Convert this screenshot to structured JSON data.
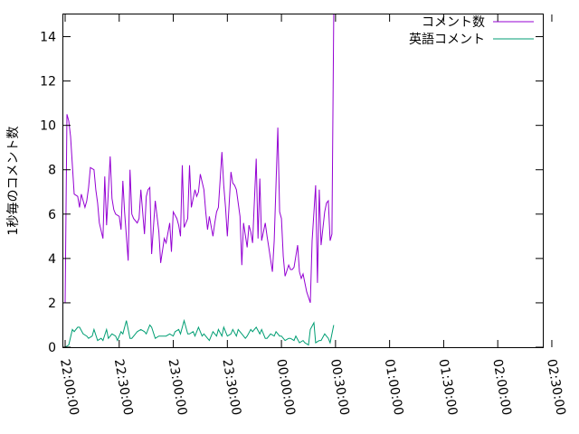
{
  "chart_data": {
    "type": "line",
    "title": "",
    "xlabel": "",
    "ylabel": "1秒毎のコメント数",
    "xlim": [
      "21:59:00",
      "02:25:00"
    ],
    "ylim": [
      0,
      15
    ],
    "xticks": [
      "22:00:00",
      "22:30:00",
      "23:00:00",
      "23:30:00",
      "00:00:00",
      "00:30:00",
      "01:00:00",
      "01:30:00",
      "02:00:00",
      "02:30:00"
    ],
    "yticks": [
      "0",
      "2",
      "4",
      "6",
      "8",
      "10",
      "12",
      "14"
    ],
    "grid": false,
    "legend_position": "top-right",
    "series": [
      {
        "name": "コメント数",
        "color": "#9400d3",
        "points": [
          [
            "22:00:00",
            2.0
          ],
          [
            "22:01:00",
            10.5
          ],
          [
            "22:02:00",
            10.2
          ],
          [
            "22:03:00",
            9.5
          ],
          [
            "22:04:00",
            8.2
          ],
          [
            "22:05:00",
            6.9
          ],
          [
            "22:07:00",
            6.8
          ],
          [
            "22:08:00",
            6.3
          ],
          [
            "22:09:00",
            6.9
          ],
          [
            "22:11:00",
            6.3
          ],
          [
            "22:12:00",
            6.6
          ],
          [
            "22:13:00",
            7.2
          ],
          [
            "22:14:00",
            8.1
          ],
          [
            "22:16:00",
            8.0
          ],
          [
            "22:17:00",
            7.1
          ],
          [
            "22:18:00",
            6.5
          ],
          [
            "22:19:00",
            5.6
          ],
          [
            "22:21:00",
            4.9
          ],
          [
            "22:22:00",
            7.7
          ],
          [
            "22:23:00",
            5.5
          ],
          [
            "22:25:00",
            8.6
          ],
          [
            "22:26:00",
            6.7
          ],
          [
            "22:27:00",
            6.2
          ],
          [
            "22:28:00",
            6.0
          ],
          [
            "22:30:00",
            5.9
          ],
          [
            "22:31:00",
            5.3
          ],
          [
            "22:32:00",
            7.5
          ],
          [
            "22:33:00",
            6.1
          ],
          [
            "22:35:00",
            3.9
          ],
          [
            "22:36:00",
            8.0
          ],
          [
            "22:37:00",
            6.0
          ],
          [
            "22:38:00",
            5.8
          ],
          [
            "22:40:00",
            5.6
          ],
          [
            "22:41:00",
            5.8
          ],
          [
            "22:42:00",
            7.1
          ],
          [
            "22:44:00",
            5.1
          ],
          [
            "22:45:00",
            6.8
          ],
          [
            "22:46:00",
            7.1
          ],
          [
            "22:47:00",
            7.2
          ],
          [
            "22:48:00",
            4.2
          ],
          [
            "22:50:00",
            6.6
          ],
          [
            "22:51:00",
            5.9
          ],
          [
            "22:52:00",
            5.2
          ],
          [
            "22:53:00",
            3.8
          ],
          [
            "22:55:00",
            4.9
          ],
          [
            "22:56:00",
            4.7
          ],
          [
            "22:58:00",
            5.6
          ],
          [
            "22:59:00",
            4.3
          ],
          [
            "23:00:00",
            6.1
          ],
          [
            "23:02:00",
            5.8
          ],
          [
            "23:03:00",
            5.5
          ],
          [
            "23:04:00",
            5.0
          ],
          [
            "23:05:00",
            8.2
          ],
          [
            "23:06:00",
            5.4
          ],
          [
            "23:08:00",
            5.8
          ],
          [
            "23:09:00",
            8.2
          ],
          [
            "23:10:00",
            6.3
          ],
          [
            "23:12:00",
            7.1
          ],
          [
            "23:13:00",
            6.8
          ],
          [
            "23:14:00",
            7.0
          ],
          [
            "23:15:00",
            7.8
          ],
          [
            "23:17:00",
            7.1
          ],
          [
            "23:18:00",
            6.1
          ],
          [
            "23:19:00",
            5.3
          ],
          [
            "23:20:00",
            5.9
          ],
          [
            "23:22:00",
            5.0
          ],
          [
            "23:23:00",
            5.6
          ],
          [
            "23:24:00",
            6.1
          ],
          [
            "23:25:00",
            6.3
          ],
          [
            "23:27:00",
            8.8
          ],
          [
            "23:28:00",
            7.3
          ],
          [
            "23:29:00",
            6.3
          ],
          [
            "23:30:00",
            5.0
          ],
          [
            "23:32:00",
            7.9
          ],
          [
            "23:33:00",
            7.4
          ],
          [
            "23:34:00",
            7.3
          ],
          [
            "23:35:00",
            7.1
          ],
          [
            "23:37:00",
            5.9
          ],
          [
            "23:38:00",
            3.7
          ],
          [
            "23:39:00",
            5.6
          ],
          [
            "23:41:00",
            4.5
          ],
          [
            "23:42:00",
            5.5
          ],
          [
            "23:43:00",
            5.2
          ],
          [
            "23:44:00",
            4.7
          ],
          [
            "23:46:00",
            8.5
          ],
          [
            "23:47:00",
            4.9
          ],
          [
            "23:48:00",
            7.6
          ],
          [
            "23:49:00",
            4.8
          ],
          [
            "23:51:00",
            5.6
          ],
          [
            "23:52:00",
            5.0
          ],
          [
            "23:53:00",
            4.5
          ],
          [
            "23:55:00",
            3.4
          ],
          [
            "23:56:00",
            4.8
          ],
          [
            "23:58:00",
            9.9
          ],
          [
            "23:59:00",
            6.1
          ],
          [
            "00:00:00",
            5.8
          ],
          [
            "00:01:00",
            4.1
          ],
          [
            "00:02:00",
            3.2
          ],
          [
            "00:04:00",
            3.7
          ],
          [
            "00:05:00",
            3.5
          ],
          [
            "00:06:00",
            3.5
          ],
          [
            "00:07:00",
            3.6
          ],
          [
            "00:09:00",
            4.6
          ],
          [
            "00:10:00",
            3.4
          ],
          [
            "00:11:00",
            3.1
          ],
          [
            "00:12:00",
            3.3
          ],
          [
            "00:14:00",
            2.5
          ],
          [
            "00:16:00",
            2.0
          ],
          [
            "00:17:00",
            4.8
          ],
          [
            "00:19:00",
            7.3
          ],
          [
            "00:20:00",
            2.9
          ],
          [
            "00:21:00",
            7.1
          ],
          [
            "00:22:00",
            4.6
          ],
          [
            "00:24:00",
            6.1
          ],
          [
            "00:25:00",
            6.5
          ],
          [
            "00:26:00",
            6.6
          ],
          [
            "00:27:00",
            4.8
          ],
          [
            "00:28:00",
            5.1
          ],
          [
            "00:29:00",
            15.0
          ]
        ]
      },
      {
        "name": "英語コメント",
        "color": "#009e73",
        "points": [
          [
            "22:00:00",
            0.0
          ],
          [
            "22:02:00",
            0.1
          ],
          [
            "22:04:00",
            0.8
          ],
          [
            "22:05:00",
            0.7
          ],
          [
            "22:07:00",
            0.9
          ],
          [
            "22:08:00",
            0.9
          ],
          [
            "22:10:00",
            0.6
          ],
          [
            "22:12:00",
            0.5
          ],
          [
            "22:13:00",
            0.4
          ],
          [
            "22:15:00",
            0.5
          ],
          [
            "22:16:00",
            0.8
          ],
          [
            "22:18:00",
            0.3
          ],
          [
            "22:20:00",
            0.4
          ],
          [
            "22:21:00",
            0.3
          ],
          [
            "22:23:00",
            0.8
          ],
          [
            "22:24:00",
            0.4
          ],
          [
            "22:26:00",
            0.6
          ],
          [
            "22:28:00",
            0.5
          ],
          [
            "22:29:00",
            0.3
          ],
          [
            "22:31:00",
            0.7
          ],
          [
            "22:32:00",
            0.6
          ],
          [
            "22:34:00",
            1.2
          ],
          [
            "22:36:00",
            0.4
          ],
          [
            "22:37:00",
            0.4
          ],
          [
            "22:39:00",
            0.6
          ],
          [
            "22:40:00",
            0.7
          ],
          [
            "22:42:00",
            0.8
          ],
          [
            "22:44:00",
            0.7
          ],
          [
            "22:45:00",
            0.6
          ],
          [
            "22:47:00",
            1.0
          ],
          [
            "22:48:00",
            0.9
          ],
          [
            "22:50:00",
            0.4
          ],
          [
            "22:52:00",
            0.5
          ],
          [
            "22:53:00",
            0.5
          ],
          [
            "22:55:00",
            0.5
          ],
          [
            "22:56:00",
            0.5
          ],
          [
            "22:58:00",
            0.6
          ],
          [
            "23:00:00",
            0.5
          ],
          [
            "23:01:00",
            0.7
          ],
          [
            "23:03:00",
            0.8
          ],
          [
            "23:04:00",
            0.6
          ],
          [
            "23:06:00",
            1.2
          ],
          [
            "23:08:00",
            0.6
          ],
          [
            "23:09:00",
            0.6
          ],
          [
            "23:11:00",
            0.7
          ],
          [
            "23:12:00",
            0.5
          ],
          [
            "23:14:00",
            0.9
          ],
          [
            "23:16:00",
            0.5
          ],
          [
            "23:17:00",
            0.6
          ],
          [
            "23:19:00",
            0.4
          ],
          [
            "23:20:00",
            0.3
          ],
          [
            "23:22:00",
            0.7
          ],
          [
            "23:24:00",
            0.5
          ],
          [
            "23:25:00",
            0.8
          ],
          [
            "23:27:00",
            0.5
          ],
          [
            "23:28:00",
            0.9
          ],
          [
            "23:30:00",
            0.5
          ],
          [
            "23:32:00",
            0.6
          ],
          [
            "23:33:00",
            0.8
          ],
          [
            "23:35:00",
            0.5
          ],
          [
            "23:36:00",
            0.8
          ],
          [
            "23:38:00",
            0.6
          ],
          [
            "23:40:00",
            0.4
          ],
          [
            "23:41:00",
            0.5
          ],
          [
            "23:43:00",
            0.8
          ],
          [
            "23:44:00",
            0.7
          ],
          [
            "23:46:00",
            0.9
          ],
          [
            "23:48:00",
            0.6
          ],
          [
            "23:49:00",
            0.8
          ],
          [
            "23:51:00",
            0.4
          ],
          [
            "23:52:00",
            0.4
          ],
          [
            "23:54:00",
            0.6
          ],
          [
            "23:56:00",
            0.5
          ],
          [
            "23:57:00",
            0.7
          ],
          [
            "23:59:00",
            0.5
          ],
          [
            "00:00:00",
            0.5
          ],
          [
            "00:02:00",
            0.3
          ],
          [
            "00:04:00",
            0.4
          ],
          [
            "00:05:00",
            0.4
          ],
          [
            "00:07:00",
            0.3
          ],
          [
            "00:08:00",
            0.5
          ],
          [
            "00:10:00",
            0.2
          ],
          [
            "00:12:00",
            0.3
          ],
          [
            "00:13:00",
            0.2
          ],
          [
            "00:15:00",
            0.1
          ],
          [
            "00:16:00",
            0.8
          ],
          [
            "00:18:00",
            1.1
          ],
          [
            "00:19:00",
            0.2
          ],
          [
            "00:21:00",
            0.3
          ],
          [
            "00:22:00",
            0.3
          ],
          [
            "00:24:00",
            0.6
          ],
          [
            "00:26:00",
            0.4
          ],
          [
            "00:27:00",
            0.2
          ],
          [
            "00:29:00",
            1.0
          ]
        ]
      }
    ]
  }
}
